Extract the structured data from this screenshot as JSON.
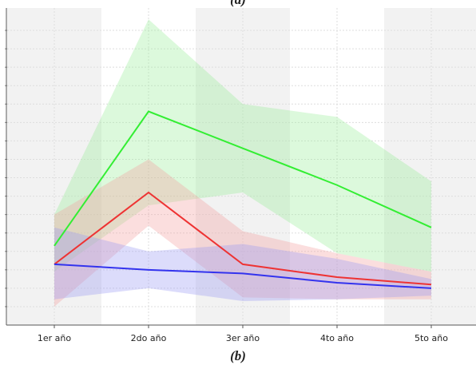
{
  "chart_data": {
    "type": "line-band",
    "caption_top": "(a)",
    "caption": "(b)",
    "categories": [
      "1er año",
      "2do año",
      "3er año",
      "4to año",
      "5to año"
    ],
    "series": [
      {
        "color": "#33ee33",
        "band_color": "#9aee9a",
        "values": [
          4.3,
          11.6,
          9.6,
          7.6,
          5.3
        ],
        "upper": [
          6.0,
          16.6,
          12.0,
          11.3,
          7.8
        ],
        "lower": [
          2.9,
          6.5,
          7.2,
          3.9,
          2.9
        ]
      },
      {
        "color": "#ee3333",
        "band_color": "#f4a0a0",
        "values": [
          3.3,
          7.2,
          3.3,
          2.6,
          2.2
        ],
        "upper": [
          6.0,
          9.0,
          5.1,
          3.9,
          2.9
        ],
        "lower": [
          1.0,
          5.4,
          1.5,
          1.4,
          1.4
        ]
      },
      {
        "color": "#3333ee",
        "band_color": "#9a9af4",
        "values": [
          3.3,
          3.0,
          2.8,
          2.3,
          2.0
        ],
        "upper": [
          5.3,
          4.0,
          4.4,
          3.6,
          2.5
        ],
        "lower": [
          1.4,
          2.0,
          1.3,
          1.4,
          1.6
        ]
      }
    ],
    "ylim": [
      0,
      17
    ],
    "yticks": [
      1,
      2,
      3,
      4,
      5,
      6,
      7,
      8,
      9,
      10,
      11,
      12,
      13,
      14,
      15,
      16
    ],
    "grid": true
  }
}
